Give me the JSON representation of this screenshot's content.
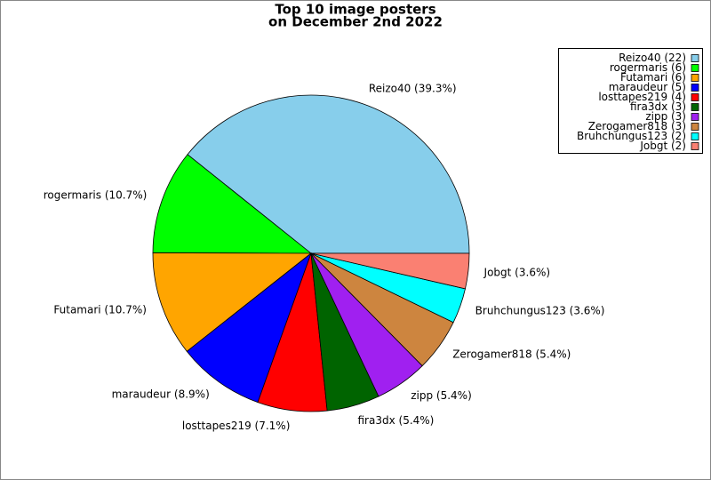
{
  "chart_data": {
    "type": "pie",
    "title": "Top 10 image posters",
    "subtitle": "on December 2nd 2022",
    "values": [
      39.3,
      10.7,
      10.7,
      8.9,
      7.1,
      5.4,
      5.4,
      5.4,
      3.6,
      3.6
    ],
    "value_labels": [
      "Reizo40 (39.3%)",
      "rogermaris (10.7%)",
      "Futamari (10.7%)",
      "maraudeur (8.9%)",
      "losttapes219 (7.1%)",
      "fira3dx (5.4%)",
      "zipp (5.4%)",
      "Zerogamer818 (5.4%)",
      "Bruhchungus123 (3.6%)",
      "Jobgt (3.6%)"
    ],
    "legend_labels": [
      "Reizo40 (22)",
      "rogermaris (6)",
      "Futamari (6)",
      "maraudeur (5)",
      "losttapes219 (4)",
      "fira3dx (3)",
      "zipp (3)",
      "Zerogamer818 (3)",
      "Bruhchungus123 (2)",
      "Jobgt (2)"
    ],
    "colors": [
      "#87ceeb",
      "#00ff00",
      "#ffa500",
      "#0000ff",
      "#ff0000",
      "#006400",
      "#a020f0",
      "#cd853f",
      "#00ffff",
      "#fa8072"
    ],
    "legend": "upper right"
  }
}
